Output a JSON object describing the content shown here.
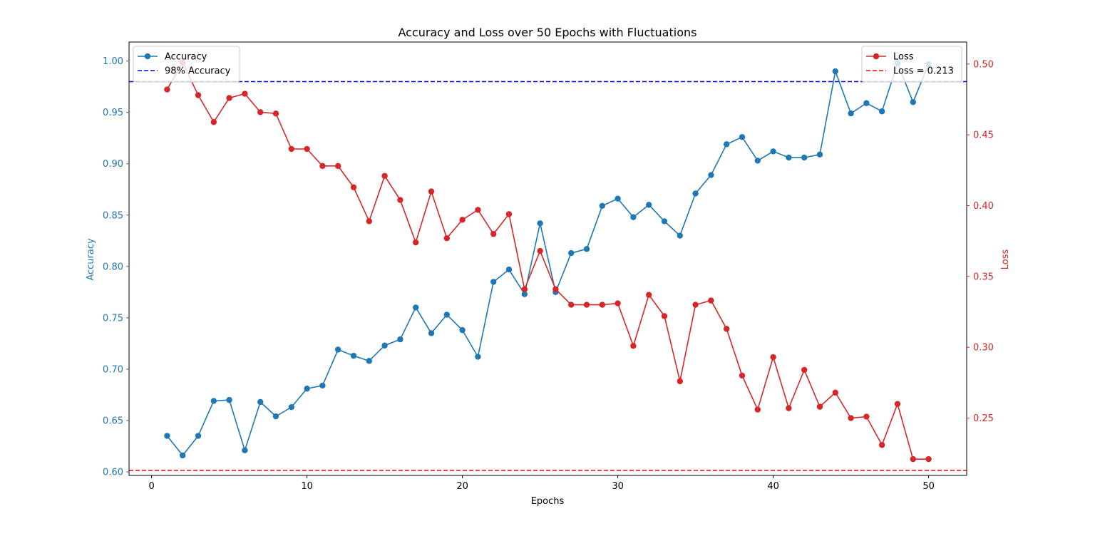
{
  "chart_data": {
    "type": "line",
    "title": "Accuracy and Loss over 50 Epochs with Fluctuations",
    "xlabel": "Epochs",
    "ylabel_left": "Accuracy",
    "ylabel_right": "Loss",
    "xlim": [
      -1.45,
      52.45
    ],
    "ylim_left": [
      0.5965,
      1.0185
    ],
    "ylim_right": [
      0.2095,
      0.5155
    ],
    "xticks": [
      0,
      10,
      20,
      30,
      40,
      50
    ],
    "yticks_left": [
      0.6,
      0.65,
      0.7,
      0.75,
      0.8,
      0.85,
      0.9,
      0.95,
      1.0
    ],
    "yticks_right": [
      0.25,
      0.3,
      0.35,
      0.4,
      0.45,
      0.5
    ],
    "grid": false,
    "x": [
      1,
      2,
      3,
      4,
      5,
      6,
      7,
      8,
      9,
      10,
      11,
      12,
      13,
      14,
      15,
      16,
      17,
      18,
      19,
      20,
      21,
      22,
      23,
      24,
      25,
      26,
      27,
      28,
      29,
      30,
      31,
      32,
      33,
      34,
      35,
      36,
      37,
      38,
      39,
      40,
      41,
      42,
      43,
      44,
      45,
      46,
      47,
      48,
      49,
      50
    ],
    "series": [
      {
        "name": "Accuracy",
        "axis": "left",
        "color": "#1f77b4",
        "values": [
          0.635,
          0.616,
          0.635,
          0.669,
          0.67,
          0.621,
          0.668,
          0.654,
          0.663,
          0.681,
          0.684,
          0.719,
          0.713,
          0.708,
          0.723,
          0.729,
          0.76,
          0.735,
          0.753,
          0.738,
          0.712,
          0.785,
          0.797,
          0.773,
          0.842,
          0.775,
          0.813,
          0.817,
          0.859,
          0.866,
          0.848,
          0.86,
          0.844,
          0.83,
          0.871,
          0.889,
          0.919,
          0.926,
          0.903,
          0.912,
          0.906,
          0.906,
          0.909,
          0.99,
          0.949,
          0.959,
          0.951,
          0.998,
          0.96,
          0.997
        ]
      },
      {
        "name": "Loss",
        "axis": "right",
        "color": "#d62728",
        "values": [
          0.482,
          0.501,
          0.478,
          0.459,
          0.476,
          0.479,
          0.466,
          0.465,
          0.44,
          0.44,
          0.428,
          0.428,
          0.413,
          0.389,
          0.421,
          0.404,
          0.374,
          0.41,
          0.377,
          0.39,
          0.397,
          0.38,
          0.394,
          0.341,
          0.368,
          0.341,
          0.33,
          0.33,
          0.33,
          0.331,
          0.301,
          0.337,
          0.322,
          0.276,
          0.33,
          0.333,
          0.313,
          0.28,
          0.256,
          0.293,
          0.257,
          0.284,
          0.258,
          0.268,
          0.25,
          0.251,
          0.231,
          0.26,
          0.221,
          0.221
        ]
      }
    ],
    "reference_lines": [
      {
        "label": "98% Accuracy",
        "axis": "left",
        "value": 0.98,
        "color": "#0000ff"
      },
      {
        "label": "Loss = 0.213",
        "axis": "right",
        "value": 0.213,
        "color": "#ff0000"
      }
    ],
    "legends": [
      {
        "placement": "top-left",
        "entries": [
          "Accuracy",
          "98% Accuracy"
        ]
      },
      {
        "placement": "top-right",
        "entries": [
          "Loss",
          "Loss = 0.213"
        ]
      }
    ]
  }
}
